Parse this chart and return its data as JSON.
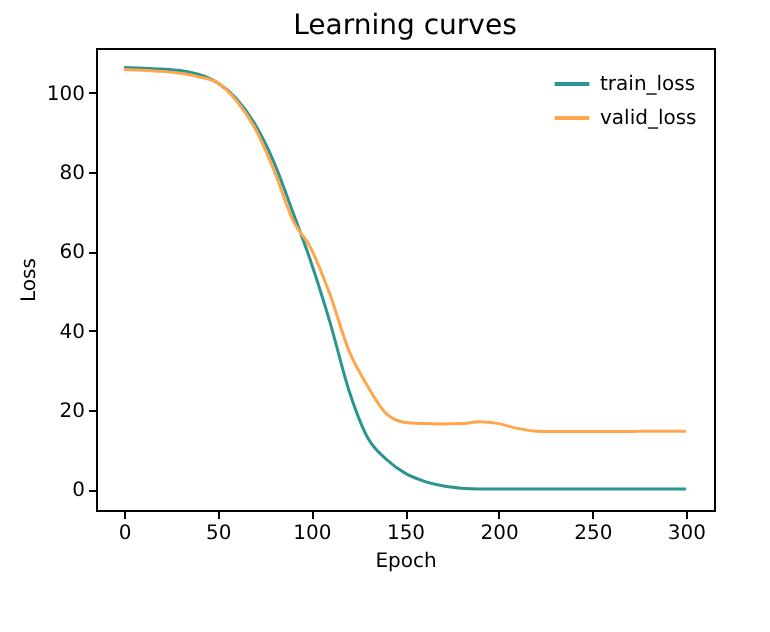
{
  "chart_data": {
    "type": "line",
    "title": "Learning curves",
    "xlabel": "Epoch",
    "ylabel": "Loss",
    "x": [
      0,
      10,
      20,
      30,
      40,
      50,
      60,
      70,
      80,
      90,
      100,
      110,
      120,
      130,
      140,
      150,
      160,
      170,
      180,
      190,
      200,
      210,
      220,
      230,
      240,
      250,
      260,
      270,
      280,
      290,
      300
    ],
    "series": [
      {
        "name": "train_loss",
        "color": "#2a9490",
        "values": [
          106.4,
          106.2,
          106,
          105.6,
          104.6,
          102.5,
          98.5,
          92,
          82.5,
          70,
          57,
          42,
          25,
          13,
          7.5,
          4,
          2,
          0.8,
          0.2,
          0,
          0,
          0,
          0,
          0,
          0,
          0,
          0,
          0,
          0,
          0,
          0
        ]
      },
      {
        "name": "valid_loss",
        "color": "#ffa64d",
        "values": [
          105.9,
          105.7,
          105.4,
          104.9,
          104,
          102.5,
          98,
          91,
          80.5,
          68,
          60.5,
          49,
          35,
          26,
          19,
          16.8,
          16.5,
          16.4,
          16.5,
          17,
          16.5,
          15.3,
          14.6,
          14.5,
          14.5,
          14.5,
          14.5,
          14.5,
          14.6,
          14.6,
          14.6
        ]
      }
    ],
    "xlim": [
      -15,
      315
    ],
    "ylim": [
      -5.3,
      111.3
    ],
    "xticks": [
      0,
      50,
      100,
      150,
      200,
      250,
      300
    ],
    "yticks": [
      0,
      20,
      40,
      60,
      80,
      100
    ],
    "grid": false,
    "legend": "top right",
    "marker": "none",
    "line_style": "solid"
  }
}
